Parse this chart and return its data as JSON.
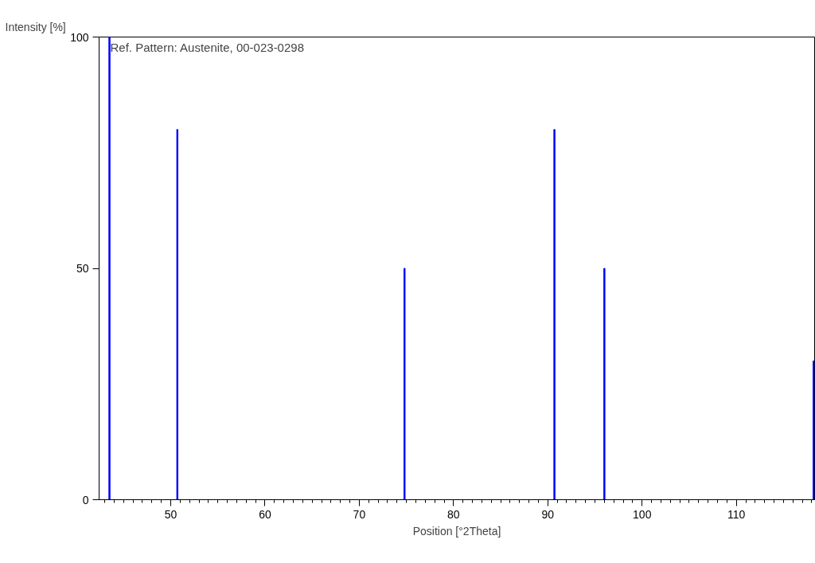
{
  "chart_data": {
    "type": "bar",
    "xlabel": "Position [°2Theta]",
    "ylabel": "Intensity [%]",
    "annotations": [
      "Ref. Pattern: Austenite, 00-023-0298"
    ],
    "x": [
      43.5,
      50.7,
      74.8,
      90.7,
      96.0,
      118.2
    ],
    "values": [
      100,
      80,
      50,
      80,
      50,
      30
    ],
    "color": "#0000ff",
    "xlim": [
      42.4,
      118.3
    ],
    "xticks": [
      50,
      60,
      70,
      80,
      90,
      100,
      110
    ],
    "ylim": [
      0,
      100
    ],
    "yticks": [
      0,
      50,
      100
    ]
  }
}
